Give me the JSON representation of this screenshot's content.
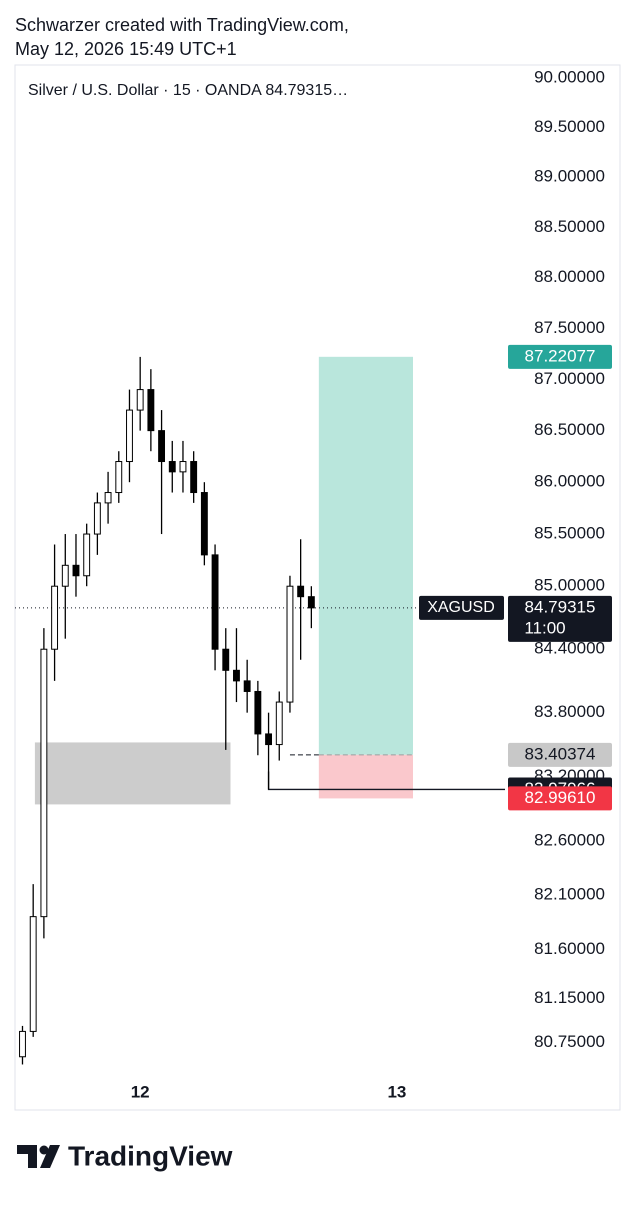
{
  "header": {
    "line1": "Schwarzer created with TradingView.com,",
    "line2": "May 12, 2026 15:49 UTC+1"
  },
  "footer": {
    "brand": "TradingView"
  },
  "chart_data": {
    "type": "candlestick",
    "title": "Silver / U.S. Dollar · 15 · OANDA  84.79315…",
    "log": true,
    "color": "#000000",
    "x": [
      -11,
      -10,
      -9,
      -8,
      -7,
      -6,
      -5,
      -4,
      -3,
      -2,
      -1,
      0,
      1,
      2,
      3,
      4,
      5,
      6,
      7,
      8,
      9,
      10,
      11,
      12,
      13,
      14,
      15,
      16
    ],
    "open": [
      80.62,
      80.85,
      81.9,
      84.4,
      85.0,
      85.2,
      85.1,
      85.5,
      85.8,
      85.9,
      86.2,
      86.7,
      86.9,
      86.5,
      86.2,
      86.1,
      86.2,
      85.9,
      85.3,
      84.4,
      84.2,
      84.1,
      84.0,
      83.6,
      83.5,
      83.9,
      85.0,
      84.9
    ],
    "high": [
      80.9,
      82.2,
      84.6,
      85.4,
      85.5,
      85.5,
      85.6,
      85.9,
      86.1,
      86.3,
      86.9,
      87.22,
      87.1,
      86.7,
      86.4,
      86.4,
      86.3,
      86.0,
      85.4,
      84.6,
      84.6,
      84.3,
      84.1,
      83.8,
      84.0,
      85.1,
      85.45,
      85.0
    ],
    "low": [
      80.55,
      80.8,
      81.7,
      84.1,
      84.5,
      84.9,
      85.0,
      85.3,
      85.6,
      85.8,
      86.0,
      86.5,
      86.3,
      85.5,
      85.9,
      85.9,
      85.8,
      85.2,
      84.2,
      83.45,
      83.9,
      83.8,
      83.4,
      83.08,
      83.35,
      83.8,
      84.3,
      84.6
    ],
    "close": [
      80.85,
      81.9,
      84.4,
      85.0,
      85.2,
      85.1,
      85.5,
      85.8,
      85.9,
      86.2,
      86.7,
      86.9,
      86.5,
      86.2,
      86.1,
      86.2,
      85.9,
      85.3,
      84.4,
      84.2,
      84.1,
      84.0,
      83.6,
      83.5,
      83.9,
      85.0,
      84.9,
      84.79315
    ],
    "xlim": [
      -11.7,
      34.1
    ],
    "xticks": [
      {
        "value": 0,
        "label": "12"
      },
      {
        "value": 24,
        "label": "13"
      }
    ],
    "ylim": [
      80.5,
      90.13
    ],
    "yticks": [
      {
        "value": 90,
        "label": "90.00000"
      },
      {
        "value": 89.5,
        "label": "89.50000"
      },
      {
        "value": 89,
        "label": "89.00000"
      },
      {
        "value": 88.5,
        "label": "88.50000"
      },
      {
        "value": 88,
        "label": "88.00000"
      },
      {
        "value": 87.5,
        "label": "87.50000"
      },
      {
        "value": 87,
        "label": "87.00000"
      },
      {
        "value": 86.5,
        "label": "86.50000"
      },
      {
        "value": 86,
        "label": "86.00000"
      },
      {
        "value": 85.5,
        "label": "85.50000"
      },
      {
        "value": 85,
        "label": "85.00000"
      },
      {
        "value": 84.4,
        "label": "84.40000"
      },
      {
        "value": 83.8,
        "label": "83.80000"
      },
      {
        "value": 83.2,
        "label": "83.20000"
      },
      {
        "value": 82.6,
        "label": "82.60000"
      },
      {
        "value": 82.1,
        "label": "82.10000"
      },
      {
        "value": 81.6,
        "label": "81.60000"
      },
      {
        "value": 81.15,
        "label": "81.15000"
      },
      {
        "value": 80.75,
        "label": "80.75000"
      }
    ],
    "zone": {
      "x": [
        -9.84,
        8.44
      ],
      "y": [
        82.94,
        83.52
      ],
      "color": "#cccccc"
    },
    "position": {
      "x": [
        16.7,
        25.5
      ],
      "entry": 83.40374,
      "target": 87.22077,
      "stop": {
        "value": 82.9961,
        "label": "82.99610"
      },
      "target_color": "#b9e6dc",
      "stop_color": "#fac8cc",
      "target_label_color": "#26a69a",
      "stop_label_color": "#f23645",
      "entry_label_color": "#c8c8c8"
    },
    "level": {
      "x": 12,
      "value": 83.07966
    },
    "last": {
      "value": 84.79315,
      "symbol": "XAGUSD",
      "countdown": "11:00"
    }
  }
}
